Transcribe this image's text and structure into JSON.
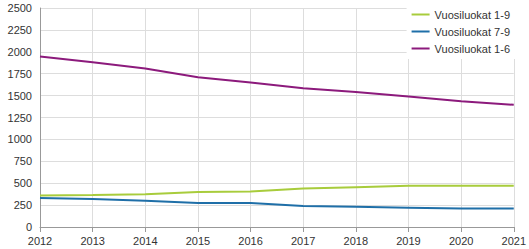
{
  "chart_data": {
    "type": "line",
    "categories": [
      "2012",
      "2013",
      "2014",
      "2015",
      "2016",
      "2017",
      "2018",
      "2019",
      "2020",
      "2021"
    ],
    "series": [
      {
        "name": "Vuosiluokat 1-9",
        "color": "#a8cc3c",
        "values": [
          360,
          365,
          375,
          400,
          405,
          440,
          455,
          470,
          470,
          470
        ]
      },
      {
        "name": "Vuosiluokat 7-9",
        "color": "#1f6fa8",
        "values": [
          330,
          320,
          300,
          275,
          275,
          240,
          230,
          220,
          210,
          210
        ]
      },
      {
        "name": "Vuosiluokat 1-6",
        "color": "#8c1a7c",
        "values": [
          1945,
          1880,
          1810,
          1710,
          1650,
          1585,
          1540,
          1490,
          1435,
          1395
        ]
      }
    ],
    "ylim": [
      0,
      2500
    ],
    "yticks": [
      0,
      250,
      500,
      750,
      1000,
      1250,
      1500,
      1750,
      2000,
      2250,
      2500
    ],
    "grid": true,
    "legend": "upper right"
  }
}
